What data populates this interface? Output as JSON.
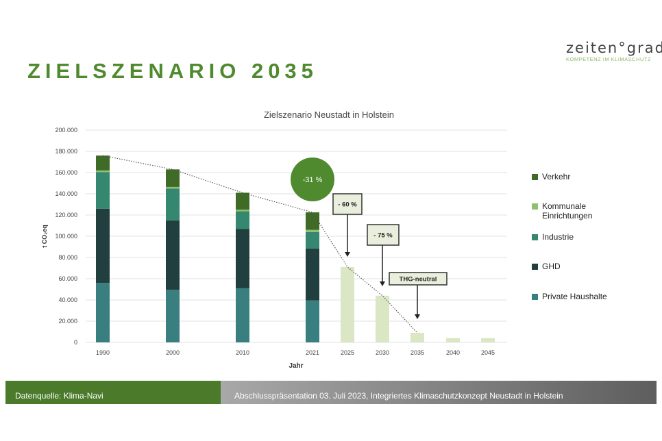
{
  "slide_title": "ZIELSZENARIO 2035",
  "logo": {
    "name": "zeiten°grad",
    "tagline": "KOMPETENZ IM KLIMASCHUTZ"
  },
  "footer": {
    "source": "Datenquelle: Klima-Navi",
    "event": "Abschlusspräsentation 03. Juli 2023, Integriertes Klimaschutzkonzept Neustadt in Holstein"
  },
  "chart_data": {
    "type": "bar",
    "stacked": true,
    "title": "Zielszenario Neustadt in Holstein",
    "xlabel": "Jahr",
    "ylabel": "t CO₂eq",
    "ylim": [
      0,
      200000
    ],
    "yticks": [
      "0",
      "20.000",
      "40.000",
      "60.000",
      "80.000",
      "100.000",
      "120.000",
      "140.000",
      "160.000",
      "180.000",
      "200.000"
    ],
    "grid": true,
    "legend_position": "right",
    "categories": [
      "1990",
      "2000",
      "2010",
      "2021",
      "2025",
      "2030",
      "2035",
      "2040",
      "2045"
    ],
    "series": [
      {
        "name": "Private Haushalte",
        "color": "#3a7f80",
        "values": [
          56000,
          49500,
          51000,
          39500,
          null,
          null,
          null,
          null,
          null
        ]
      },
      {
        "name": "GHD",
        "color": "#213f3e",
        "values": [
          70000,
          65500,
          56000,
          49000,
          null,
          null,
          null,
          null,
          null
        ]
      },
      {
        "name": "Industrie",
        "color": "#35876f",
        "values": [
          34500,
          30000,
          16500,
          15500,
          null,
          null,
          null,
          null,
          null
        ]
      },
      {
        "name": "Kommunale Einrichtungen",
        "color": "#8fc070",
        "values": [
          1500,
          1500,
          1500,
          2000,
          null,
          null,
          null,
          null,
          null
        ]
      },
      {
        "name": "Verkehr",
        "color": "#3f6b26",
        "values": [
          14000,
          16500,
          16000,
          16500,
          null,
          null,
          null,
          null,
          null
        ]
      },
      {
        "color": "#dbe6c4",
        "values": [
          null,
          null,
          null,
          null,
          71000,
          44000,
          9000,
          4000,
          4000
        ]
      }
    ],
    "legend_order": [
      "Verkehr",
      "Kommunale Einrichtungen",
      "Industrie",
      "GHD",
      "Private Haushalte"
    ],
    "trend_line": {
      "style": "dotted",
      "x": [
        "1990",
        "2000",
        "2010",
        "2021",
        "2025",
        "2030",
        "2035"
      ],
      "y": [
        176000,
        163000,
        141000,
        122500,
        71000,
        44000,
        9000
      ]
    },
    "annotations": [
      {
        "text": "-31 %",
        "shape": "circle",
        "color": "#4f8a2e",
        "at": "2021"
      },
      {
        "text": "- 60 %",
        "shape": "box",
        "arrow_to": "2025"
      },
      {
        "text": "- 75 %",
        "shape": "box",
        "arrow_to": "2030"
      },
      {
        "text": "THG-neutral",
        "shape": "box",
        "arrow_to": "2035"
      }
    ]
  }
}
